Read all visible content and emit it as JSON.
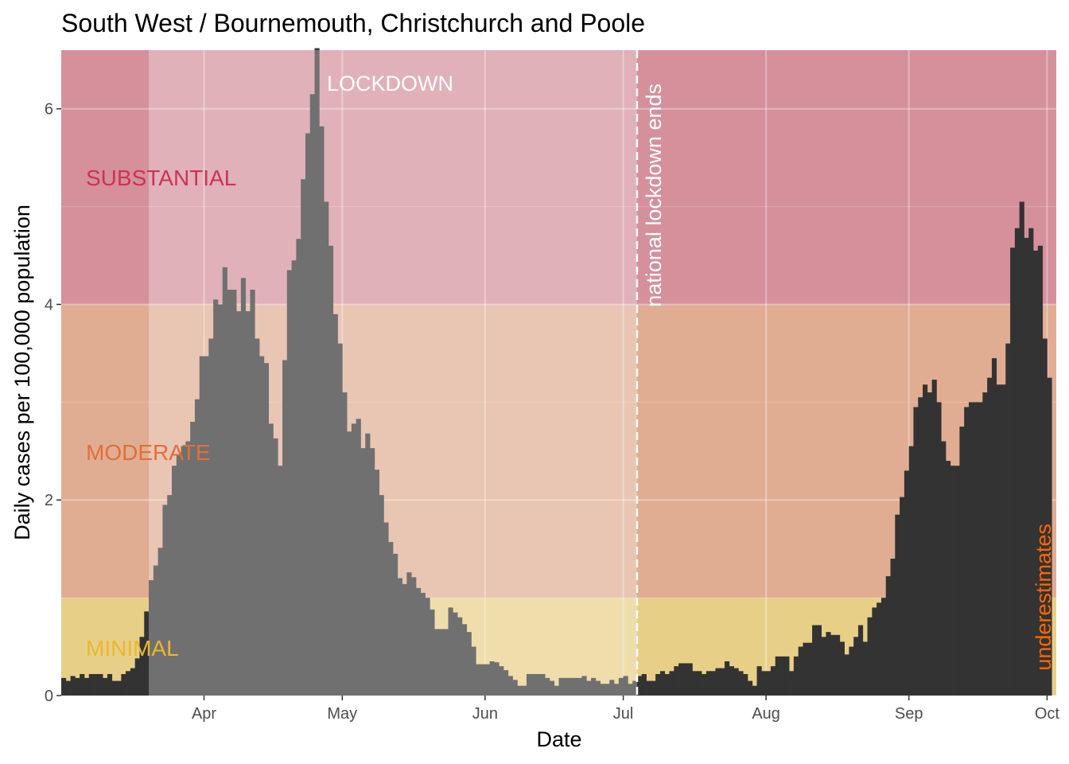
{
  "chart_data": {
    "type": "bar",
    "title": "South West / Bournemouth, Christchurch and Poole",
    "xlabel": "Date",
    "ylabel": "Daily cases per 100,000 population",
    "ylim": [
      0,
      6.6
    ],
    "yticks": [
      0,
      2,
      4,
      6
    ],
    "x_start": "2020-03-01",
    "x_end": "2020-10-03",
    "xticks": [
      {
        "label": "Apr",
        "date": "2020-04-01"
      },
      {
        "label": "May",
        "date": "2020-05-01"
      },
      {
        "label": "Jun",
        "date": "2020-06-01"
      },
      {
        "label": "Jul",
        "date": "2020-07-01"
      },
      {
        "label": "Aug",
        "date": "2020-08-01"
      },
      {
        "label": "Sep",
        "date": "2020-09-01"
      },
      {
        "label": "Oct",
        "date": "2020-10-01"
      }
    ],
    "bands": [
      {
        "label": "MINIMAL",
        "from": 0,
        "to": 1,
        "color": "#e8cf88",
        "text_color": "#e8b830"
      },
      {
        "label": "MODERATE",
        "from": 1,
        "to": 4,
        "color": "#e0ad92",
        "text_color": "#e0703a"
      },
      {
        "label": "SUBSTANTIAL",
        "from": 4,
        "to": 6.6,
        "color": "#d5909b",
        "text_color": "#cc3355"
      }
    ],
    "lockdown": {
      "label": "LOCKDOWN",
      "start": "2020-03-20",
      "end": "2020-07-04",
      "overlay_color": "#ffffff"
    },
    "vline": {
      "label": "national lockdown ends",
      "date": "2020-07-04",
      "color": "#ffffff"
    },
    "side_annotation": {
      "label": "underestimates",
      "color": "#ff6600"
    },
    "bar_color": "#333333",
    "grid": true,
    "series": [
      {
        "x_start": "2020-03-01",
        "values": [
          0.18,
          0.15,
          0.2,
          0.18,
          0.22,
          0.18,
          0.22,
          0.22,
          0.22,
          0.18,
          0.22,
          0.15,
          0.15,
          0.22,
          0.25,
          0.28,
          0.38,
          0.6,
          0.86,
          1.18,
          1.33,
          1.51,
          1.95,
          2.05,
          2.35,
          2.46,
          2.55,
          2.6,
          2.8,
          3.03,
          3.47,
          3.47,
          3.65,
          4.05,
          4.0,
          4.38,
          4.15,
          4.15,
          3.93,
          4.27,
          3.93,
          4.15,
          3.65,
          3.47,
          3.4,
          2.78,
          2.63,
          2.35,
          3.43,
          4.35,
          4.45,
          4.67,
          5.28,
          5.75,
          6.15,
          6.62,
          5.82,
          5.05,
          4.6,
          3.9,
          3.6,
          3.1,
          2.7,
          2.78,
          2.83,
          2.53,
          2.68,
          2.53,
          2.31,
          2.05,
          1.77,
          1.57,
          1.45,
          1.2,
          1.14,
          1.26,
          1.21,
          1.1,
          1.05,
          1.0,
          0.88,
          0.68,
          0.68,
          0.68,
          0.9,
          0.85,
          0.8,
          0.73,
          0.65,
          0.5,
          0.32,
          0.32,
          0.32,
          0.35,
          0.34,
          0.3,
          0.26,
          0.2,
          0.16,
          0.1,
          0.1,
          0.22,
          0.22,
          0.22,
          0.22,
          0.18,
          0.15,
          0.1,
          0.18,
          0.18,
          0.18,
          0.18,
          0.18,
          0.2,
          0.15,
          0.18,
          0.15,
          0.12,
          0.12,
          0.16,
          0.12,
          0.18,
          0.2,
          0.12,
          0.15,
          0.2,
          0.22,
          0.15,
          0.15,
          0.22,
          0.25,
          0.22,
          0.25,
          0.3,
          0.33,
          0.33,
          0.33,
          0.25,
          0.25,
          0.22,
          0.25,
          0.25,
          0.28,
          0.28,
          0.35,
          0.3,
          0.28,
          0.25,
          0.22,
          0.15,
          0.1,
          0.3,
          0.25,
          0.25,
          0.3,
          0.4,
          0.4,
          0.4,
          0.25,
          0.4,
          0.5,
          0.54,
          0.54,
          0.72,
          0.72,
          0.6,
          0.65,
          0.62,
          0.62,
          0.55,
          0.42,
          0.5,
          0.6,
          0.72,
          0.55,
          0.8,
          0.9,
          0.95,
          1.0,
          1.22,
          1.4,
          1.85,
          2.03,
          2.3,
          2.55,
          2.95,
          3.05,
          3.18,
          3.1,
          3.23,
          3.0,
          2.6,
          2.4,
          2.35,
          2.35,
          2.75,
          2.95,
          3.0,
          3.0,
          3.0,
          3.1,
          3.25,
          3.45,
          3.18,
          3.18,
          3.6,
          4.58,
          4.78,
          5.05,
          4.68,
          4.78,
          4.55,
          4.6,
          3.65,
          3.25
        ]
      }
    ]
  }
}
